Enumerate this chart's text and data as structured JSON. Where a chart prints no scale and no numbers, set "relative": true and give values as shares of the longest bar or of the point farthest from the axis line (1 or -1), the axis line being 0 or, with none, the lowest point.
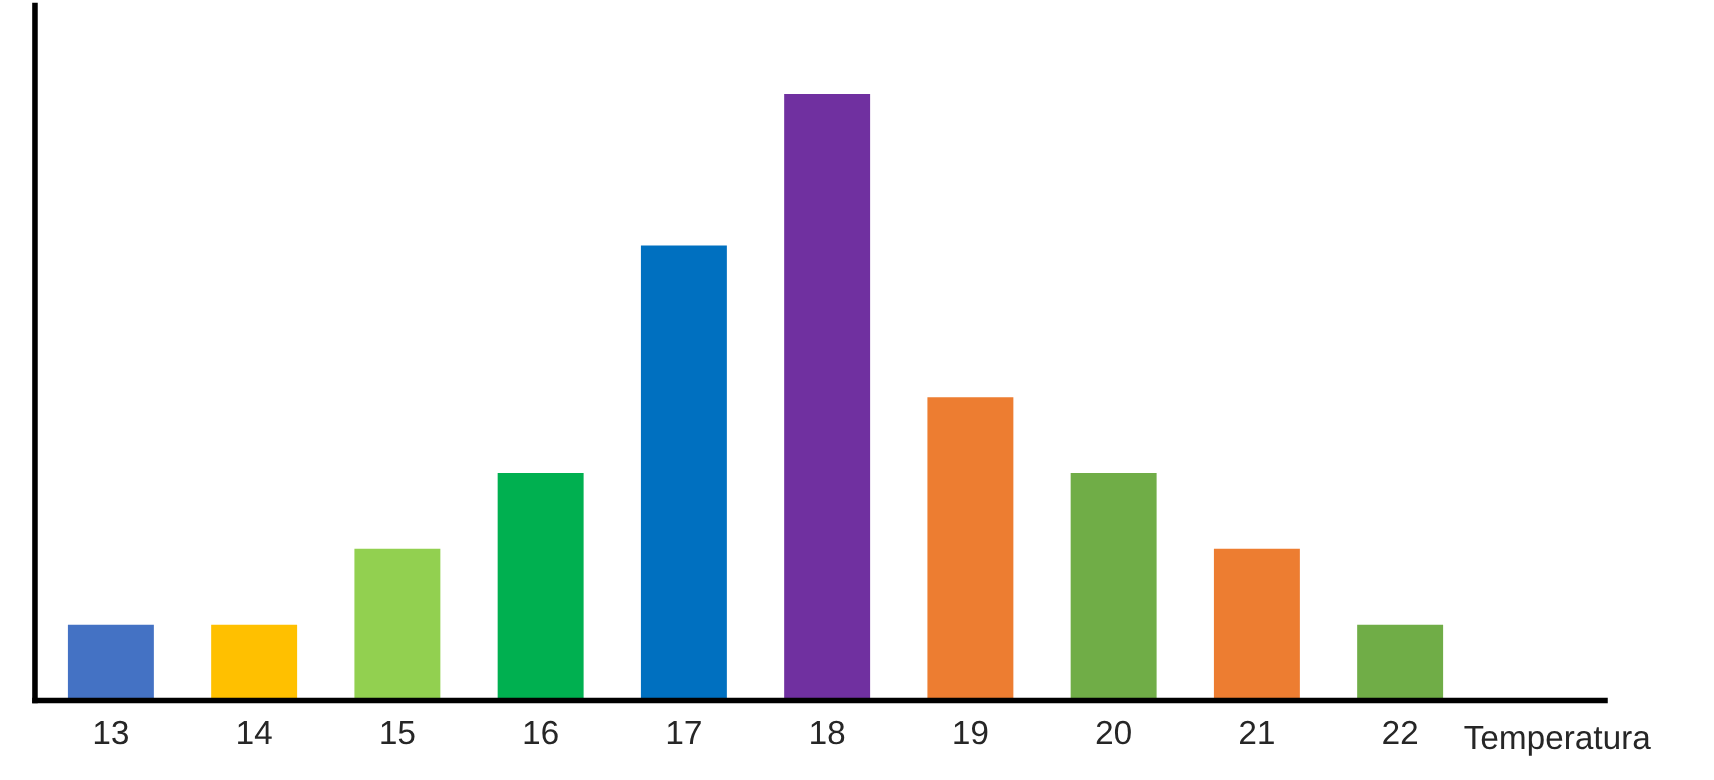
{
  "chart_data": {
    "type": "bar",
    "xlabel": "Temperatura",
    "categories": [
      "13",
      "14",
      "15",
      "16",
      "17",
      "18",
      "19",
      "20",
      "21",
      "22"
    ],
    "values": [
      0.125,
      0.125,
      0.25,
      0.375,
      0.75,
      1,
      0.5,
      0.375,
      0.25,
      0.125
    ],
    "colors": [
      "#4472c4",
      "#ffc000",
      "#92d050",
      "#00b050",
      "#0070c0",
      "#7030a0",
      "#ed7d31",
      "#70ad47",
      "#ed7d31",
      "#70ad47"
    ],
    "relative": true,
    "grid": false,
    "legend": false
  }
}
